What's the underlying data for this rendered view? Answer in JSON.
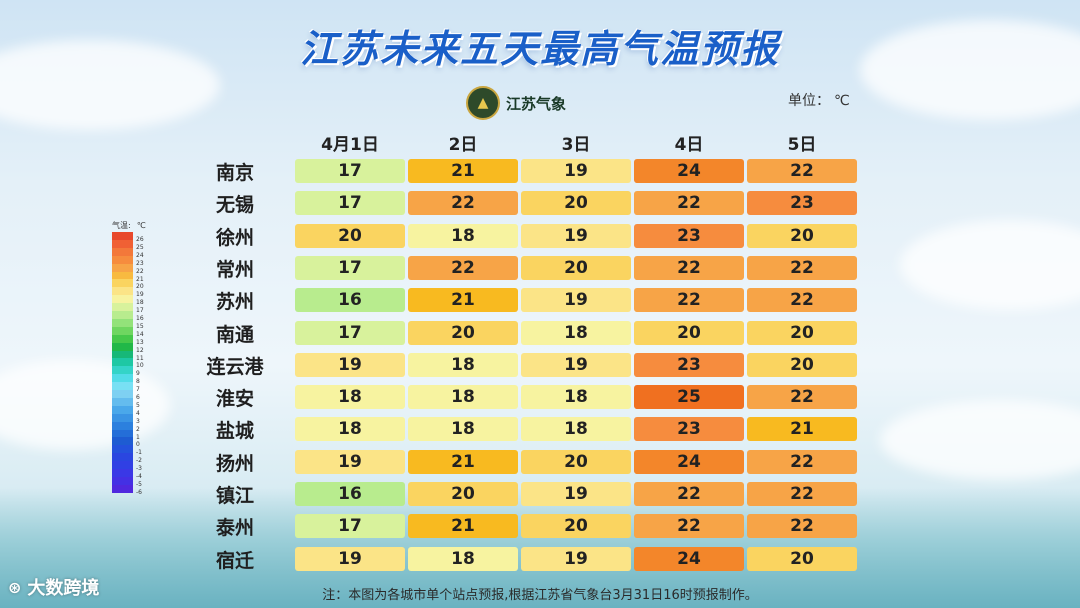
{
  "title": "江苏未来五天最高气温预报",
  "logo": {
    "text": "江苏气象"
  },
  "unit": {
    "label": "单位：",
    "value": "℃"
  },
  "legend": {
    "title": "气温",
    "unit": "℃",
    "levels": [
      "26",
      "25",
      "24",
      "23",
      "22",
      "21",
      "20",
      "19",
      "18",
      "17",
      "16",
      "15",
      "14",
      "13",
      "12",
      "11",
      "10",
      "9",
      "8",
      "7",
      "6",
      "5",
      "4",
      "3",
      "2",
      "1",
      "0",
      "-1",
      "-2",
      "-3",
      "-4",
      "-5",
      "-6"
    ],
    "colors": [
      "#e8482c",
      "#f06034",
      "#f3783a",
      "#f68c3e",
      "#f7a447",
      "#f8ba40",
      "#fad460",
      "#fbe487",
      "#f7f3a0",
      "#d8f29c",
      "#b8ec8e",
      "#93e27a",
      "#6fd660",
      "#46c84a",
      "#21b848",
      "#17b878",
      "#1ec8a4",
      "#34d4c8",
      "#52dce8",
      "#78e0f4",
      "#7ed0f2",
      "#64bcee",
      "#4aa8ea",
      "#3a94e4",
      "#2c80de",
      "#246ed8",
      "#1e5cd2",
      "#2452dc",
      "#2a46e0",
      "#3040e4",
      "#3a38e6",
      "#4430e4",
      "#5028de"
    ]
  },
  "watermark": {
    "icon": "wm-logo-icon",
    "text": "大数跨境"
  },
  "note": "注：本图为各城市单个站点预报,根据江苏省气象台3月31日16时预报制作。",
  "chart_data": {
    "type": "table",
    "title": "江苏未来五天最高气温预报",
    "columns": [
      "4月1日",
      "2日",
      "3日",
      "4日",
      "5日"
    ],
    "rows": [
      {
        "city": "南京",
        "values": [
          17,
          21,
          19,
          24,
          22
        ]
      },
      {
        "city": "无锡",
        "values": [
          17,
          22,
          20,
          22,
          23
        ]
      },
      {
        "city": "徐州",
        "values": [
          20,
          18,
          19,
          23,
          20
        ]
      },
      {
        "city": "常州",
        "values": [
          17,
          22,
          20,
          22,
          22
        ]
      },
      {
        "city": "苏州",
        "values": [
          16,
          21,
          19,
          22,
          22
        ]
      },
      {
        "city": "南通",
        "values": [
          17,
          20,
          18,
          20,
          20
        ]
      },
      {
        "city": "连云港",
        "values": [
          19,
          18,
          19,
          23,
          20
        ]
      },
      {
        "city": "淮安",
        "values": [
          18,
          18,
          18,
          25,
          22
        ]
      },
      {
        "city": "盐城",
        "values": [
          18,
          18,
          18,
          23,
          21
        ]
      },
      {
        "city": "扬州",
        "values": [
          19,
          21,
          20,
          24,
          22
        ]
      },
      {
        "city": "镇江",
        "values": [
          16,
          20,
          19,
          22,
          22
        ]
      },
      {
        "city": "泰州",
        "values": [
          17,
          21,
          20,
          22,
          22
        ]
      },
      {
        "city": "宿迁",
        "values": [
          19,
          18,
          19,
          24,
          20
        ]
      }
    ],
    "color_scale": {
      "16": "#b8ec8e",
      "17": "#d8f29c",
      "18": "#f7f3a0",
      "19": "#fbe487",
      "20": "#fad460",
      "21": "#f8ba20",
      "22": "#f7a447",
      "23": "#f68c3e",
      "24": "#f3862a",
      "25": "#f07020"
    }
  }
}
